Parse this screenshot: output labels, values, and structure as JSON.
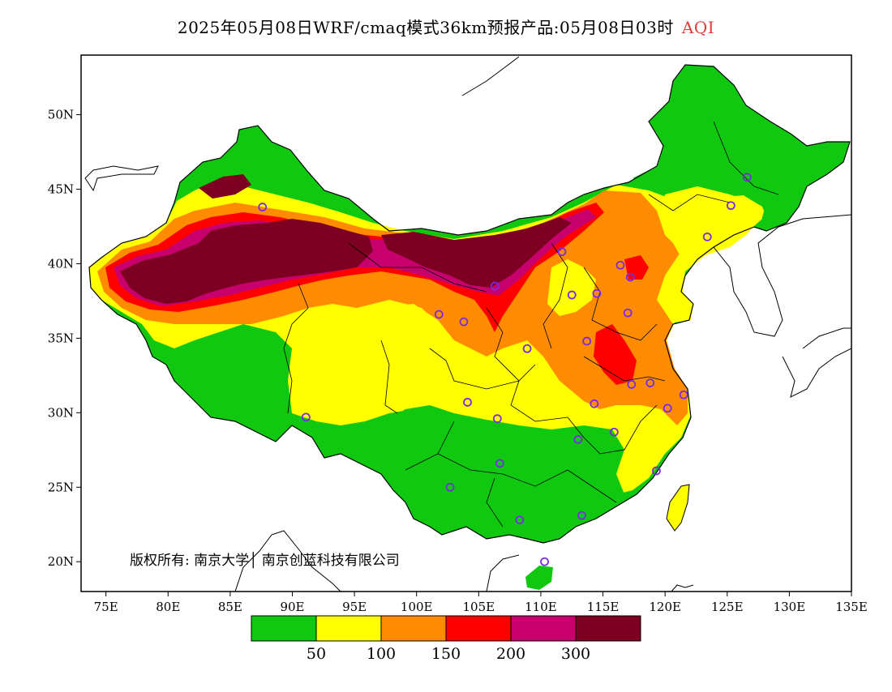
{
  "header": {
    "title": "2025年05月08日WRF/cmaq模式36km预报产品:05月08日03时",
    "variable": "AQI"
  },
  "map": {
    "copyright": "版权所有: 南京大学│ 南京创蓝科技有限公司",
    "x_ticks": [
      "75E",
      "80E",
      "85E",
      "90E",
      "95E",
      "100E",
      "105E",
      "110E",
      "115E",
      "120E",
      "125E",
      "130E",
      "135E"
    ],
    "y_ticks": [
      "50N",
      "45N",
      "40N",
      "35N",
      "30N",
      "25N",
      "20N"
    ],
    "x_tick_values": [
      75,
      80,
      85,
      90,
      95,
      100,
      105,
      110,
      115,
      120,
      125,
      130,
      135
    ],
    "y_tick_values": [
      50,
      45,
      40,
      35,
      30,
      25,
      20
    ],
    "lon_range": [
      73,
      135
    ],
    "lat_range": [
      18,
      54
    ]
  },
  "legend": {
    "colors": [
      "#11c811",
      "#ffff00",
      "#ff8c00",
      "#ff0000",
      "#c8006e",
      "#7d0023"
    ],
    "categories": [
      "0-50",
      "50-100",
      "100-150",
      "150-200",
      "200-300",
      ">300"
    ],
    "labels": [
      "50",
      "100",
      "150",
      "200",
      "300"
    ]
  },
  "stations": [
    {
      "lon": 87.6,
      "lat": 43.8
    },
    {
      "lon": 91.1,
      "lat": 29.7
    },
    {
      "lon": 101.8,
      "lat": 36.6
    },
    {
      "lon": 103.8,
      "lat": 36.1
    },
    {
      "lon": 106.3,
      "lat": 38.5
    },
    {
      "lon": 108.9,
      "lat": 34.3
    },
    {
      "lon": 111.7,
      "lat": 40.8
    },
    {
      "lon": 112.5,
      "lat": 37.9
    },
    {
      "lon": 114.5,
      "lat": 38.0
    },
    {
      "lon": 116.4,
      "lat": 39.9
    },
    {
      "lon": 117.2,
      "lat": 39.1
    },
    {
      "lon": 117.0,
      "lat": 36.7
    },
    {
      "lon": 113.7,
      "lat": 34.8
    },
    {
      "lon": 114.3,
      "lat": 30.6
    },
    {
      "lon": 117.3,
      "lat": 31.9
    },
    {
      "lon": 118.8,
      "lat": 32.0
    },
    {
      "lon": 120.2,
      "lat": 30.3
    },
    {
      "lon": 121.5,
      "lat": 31.2
    },
    {
      "lon": 115.9,
      "lat": 28.7
    },
    {
      "lon": 113.0,
      "lat": 28.2
    },
    {
      "lon": 119.3,
      "lat": 26.1
    },
    {
      "lon": 113.3,
      "lat": 23.1
    },
    {
      "lon": 108.3,
      "lat": 22.8
    },
    {
      "lon": 110.3,
      "lat": 20.0
    },
    {
      "lon": 106.7,
      "lat": 26.6
    },
    {
      "lon": 102.7,
      "lat": 25.0
    },
    {
      "lon": 104.1,
      "lat": 30.7
    },
    {
      "lon": 106.5,
      "lat": 29.6
    },
    {
      "lon": 123.4,
      "lat": 41.8
    },
    {
      "lon": 125.3,
      "lat": 43.9
    },
    {
      "lon": 126.6,
      "lat": 45.8
    }
  ]
}
